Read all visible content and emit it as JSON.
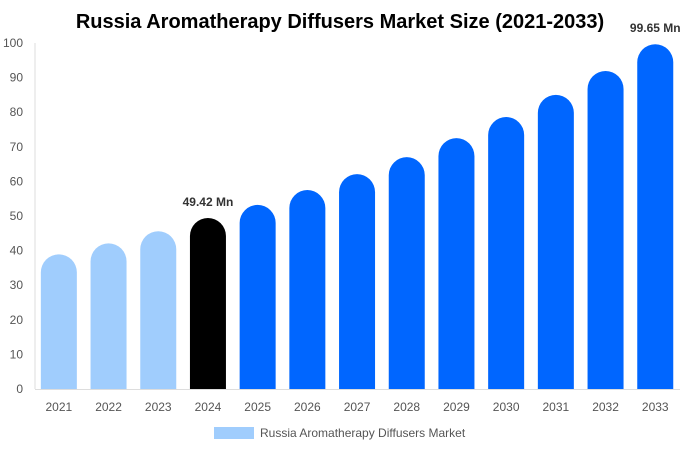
{
  "chart_data": {
    "type": "bar",
    "title": "Russia Aromatherapy Diffusers Market Size (2021-2033)",
    "categories": [
      "2021",
      "2022",
      "2023",
      "2024",
      "2025",
      "2026",
      "2027",
      "2028",
      "2029",
      "2030",
      "2031",
      "2032",
      "2033"
    ],
    "values": [
      38.9,
      42.1,
      45.6,
      49.42,
      53.2,
      57.5,
      62.1,
      67.0,
      72.5,
      78.6,
      85.0,
      91.9,
      99.65
    ],
    "data_labels": {
      "3": "49.42 Mn",
      "12": "99.65 Mn"
    },
    "ylim": [
      0,
      100
    ],
    "yticks": [
      0,
      10,
      20,
      30,
      40,
      50,
      60,
      70,
      80,
      90,
      100
    ],
    "xlabel": "",
    "ylabel": "",
    "grid": false,
    "legend": {
      "position": "bottom",
      "entries": [
        "Russia Aromatherapy Diffusers Market"
      ]
    },
    "colors": {
      "historical": "#a0cdfd",
      "base_year": "#000000",
      "forecast": "#0066ff",
      "legend": "#a0cdfd"
    }
  }
}
